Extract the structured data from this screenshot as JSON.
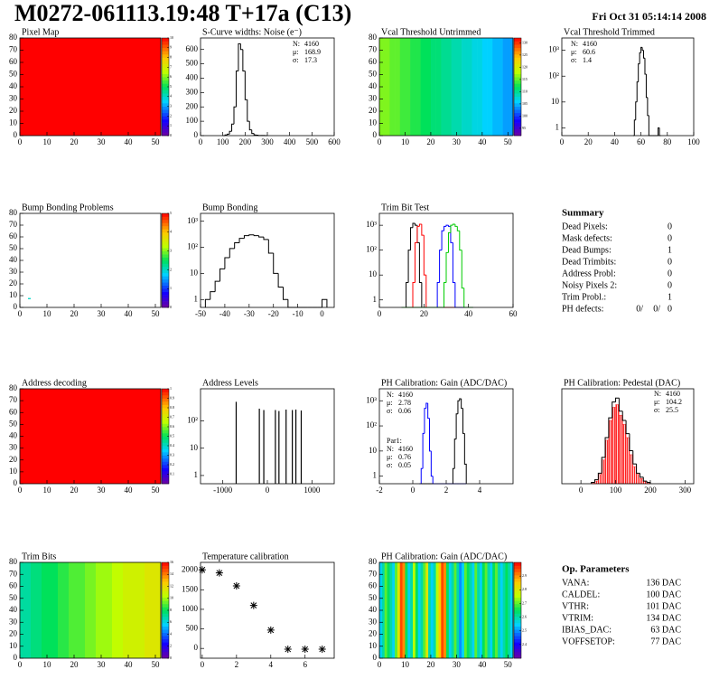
{
  "header": {
    "title": "M0272-061113.19:48 T+17a (C13)",
    "date": "Fri Oct 31 05:14:14 2008"
  },
  "chart_data": [
    {
      "type": "heatmap",
      "title": "Pixel Map",
      "xlim": [
        0,
        52
      ],
      "xticks": [
        0,
        10,
        20,
        30,
        40,
        50
      ],
      "ylim": [
        0,
        80
      ],
      "yticks": [
        0,
        10,
        20,
        30,
        40,
        50,
        60,
        70,
        80
      ],
      "zlim": [
        0,
        10
      ],
      "zticks": [
        0,
        1,
        2,
        3,
        4,
        5,
        6,
        7,
        8,
        9,
        10
      ],
      "value": 10
    },
    {
      "type": "hist",
      "title": "S-Curve widths: Noise (e⁻)",
      "xlim": [
        0,
        600
      ],
      "xticks": [
        0,
        100,
        200,
        300,
        400,
        500,
        600
      ],
      "ylim": [
        0,
        680
      ],
      "yticks": [
        0,
        100,
        200,
        300,
        400,
        500,
        600
      ],
      "bins": [
        100,
        110,
        120,
        130,
        140,
        150,
        160,
        170,
        180,
        190,
        200,
        210,
        220,
        230,
        240,
        250,
        260,
        270,
        280,
        290,
        300
      ],
      "series": [
        {
          "color": "#000000",
          "counts": [
            0,
            5,
            10,
            30,
            80,
            200,
            450,
            640,
            600,
            450,
            250,
            100,
            40,
            15,
            5,
            3,
            1,
            1,
            1,
            0
          ]
        }
      ],
      "stats": [
        [
          {
            "name": "N:",
            "value": 4160,
            "color": "#000000"
          },
          {
            "name": "μ:",
            "value": 168.9,
            "color": "#000000"
          },
          {
            "name": "σ:",
            "value": 17.3,
            "color": "#000000"
          }
        ]
      ]
    },
    {
      "type": "heatmap",
      "title": "Vcal Threshold Untrimmed",
      "xlim": [
        0,
        52
      ],
      "xticks": [
        0,
        10,
        20,
        30,
        40,
        50
      ],
      "ylim": [
        0,
        80
      ],
      "yticks": [
        0,
        10,
        20,
        30,
        40,
        50,
        60,
        70,
        80
      ],
      "zlim": [
        92,
        132
      ],
      "zticks": [
        95,
        100,
        105,
        110,
        115,
        120,
        125,
        130
      ],
      "columns": [
        116,
        116,
        115,
        115,
        114,
        114,
        113,
        113,
        112,
        112,
        111,
        111,
        110,
        110,
        109,
        109,
        108,
        108,
        107,
        107,
        106,
        106,
        105,
        105,
        104,
        104
      ]
    },
    {
      "type": "hist",
      "title": "Vcal Threshold Trimmed",
      "log_y": true,
      "xlim": [
        0,
        100
      ],
      "xticks": [
        0,
        20,
        40,
        60,
        80,
        100
      ],
      "ylim": [
        0.5,
        3000
      ],
      "yticks": [
        1,
        10,
        {
          "value": 100,
          "label": "10²"
        },
        {
          "value": 1000,
          "label": "10³"
        }
      ],
      "bins": [
        54,
        55,
        56,
        57,
        58,
        59,
        60,
        61,
        62,
        63,
        64,
        65,
        66,
        67,
        68,
        69,
        70,
        71,
        72,
        73,
        74,
        75
      ],
      "series": [
        {
          "color": "#000000",
          "counts": [
            0,
            2,
            10,
            60,
            300,
            800,
            1300,
            1000,
            500,
            120,
            15,
            3,
            0,
            0,
            0,
            0,
            0,
            0,
            0,
            1,
            0
          ]
        }
      ],
      "stats": [
        [
          {
            "name": "N:",
            "value": 4160,
            "color": "#000000"
          },
          {
            "name": "μ:",
            "value": 60.6,
            "color": "#000000"
          },
          {
            "name": "σ:",
            "value": 1.4,
            "color": "#000000"
          }
        ]
      ]
    },
    {
      "type": "heatmap",
      "title": "Bump Bonding Problems",
      "xlim": [
        0,
        52
      ],
      "xticks": [
        0,
        10,
        20,
        30,
        40,
        50
      ],
      "ylim": [
        0,
        80
      ],
      "yticks": [
        0,
        10,
        20,
        30,
        40,
        50,
        60,
        70,
        80
      ],
      "zlim": [
        0,
        5
      ],
      "zticks": [
        0,
        1,
        2,
        3,
        4,
        5
      ],
      "cells": [
        {
          "x": 3,
          "y": 7,
          "value": 2
        }
      ]
    },
    {
      "type": "hist",
      "title": "Bump Bonding",
      "log_y": true,
      "xlim": [
        -50,
        5
      ],
      "xticks": [
        -50,
        -40,
        -30,
        -20,
        -10,
        0
      ],
      "ylim": [
        0.5,
        2000
      ],
      "yticks": [
        1,
        10,
        {
          "value": 100,
          "label": "10²"
        },
        {
          "value": 1000,
          "label": "10³"
        }
      ],
      "bins": [
        -48,
        -46,
        -44,
        -42,
        -40,
        -38,
        -36,
        -34,
        -32,
        -30,
        -28,
        -26,
        -24,
        -22,
        -20,
        -18,
        -16,
        -14,
        -12,
        -10,
        -8,
        -6,
        -4,
        -2,
        0,
        2
      ],
      "series": [
        {
          "color": "#000000",
          "counts": [
            1,
            2,
            5,
            15,
            40,
            90,
            150,
            220,
            280,
            300,
            280,
            250,
            200,
            60,
            10,
            3,
            1,
            0,
            0,
            0,
            0,
            0,
            0,
            0,
            1
          ]
        }
      ]
    },
    {
      "type": "hist",
      "title": "Trim Bit Test",
      "log_y": true,
      "xlim": [
        0,
        60
      ],
      "xticks": [
        0,
        20,
        40,
        60
      ],
      "ylim": [
        0.5,
        3000
      ],
      "yticks": [
        1,
        10,
        {
          "value": 100,
          "label": "10²"
        },
        {
          "value": 1000,
          "label": "10³"
        }
      ],
      "bins": [
        10,
        11,
        12,
        13,
        14,
        15,
        16,
        17,
        18,
        19,
        20,
        21,
        22,
        23,
        24,
        25,
        26,
        27,
        28,
        29,
        30,
        31,
        32,
        33,
        34,
        35,
        36,
        37,
        38,
        39,
        40,
        41,
        42
      ],
      "series": [
        {
          "color": "#000000",
          "counts": [
            0,
            0,
            5,
            100,
            800,
            1200,
            1000,
            200,
            5,
            0,
            0,
            0,
            0,
            0,
            0,
            0,
            0,
            0,
            0,
            0,
            0,
            0,
            0,
            0,
            0,
            0,
            0,
            0,
            0,
            0,
            0,
            0
          ]
        },
        {
          "color": "#ff0000",
          "counts": [
            0,
            0,
            0,
            0,
            0,
            5,
            200,
            900,
            1100,
            400,
            10,
            0,
            0,
            0,
            0,
            0,
            0,
            0,
            0,
            0,
            0,
            0,
            0,
            0,
            0,
            0,
            0,
            0,
            0,
            0,
            0,
            0
          ]
        },
        {
          "color": "#0000ff",
          "counts": [
            0,
            0,
            0,
            0,
            0,
            0,
            0,
            0,
            0,
            0,
            0,
            0,
            0,
            0,
            0,
            0,
            5,
            100,
            600,
            900,
            1000,
            900,
            200,
            5,
            0,
            0,
            0,
            0,
            0,
            0,
            0,
            0
          ]
        },
        {
          "color": "#00cc00",
          "counts": [
            0,
            0,
            0,
            0,
            0,
            0,
            0,
            0,
            0,
            0,
            0,
            0,
            0,
            0,
            0,
            0,
            0,
            0,
            0,
            5,
            80,
            500,
            1000,
            1100,
            900,
            600,
            100,
            3,
            0,
            0,
            0,
            0
          ]
        }
      ]
    },
    {
      "type": "heatmap",
      "title": "Address decoding",
      "xlim": [
        0,
        52
      ],
      "xticks": [
        0,
        10,
        20,
        30,
        40,
        50
      ],
      "ylim": [
        0,
        80
      ],
      "yticks": [
        0,
        10,
        20,
        30,
        40,
        50,
        60,
        70,
        80
      ],
      "zlim": [
        0,
        1
      ],
      "zticks": [
        0.1,
        0.2,
        0.3,
        0.4,
        0.5,
        0.6,
        0.7,
        0.8,
        0.9,
        1
      ],
      "value": 1
    },
    {
      "type": "spikes",
      "title": "Address Levels",
      "log_y": true,
      "xlim": [
        -1500,
        1500
      ],
      "xticks": [
        -1000,
        0,
        1000
      ],
      "ylim": [
        0.5,
        1500
      ],
      "yticks": [
        1,
        10,
        {
          "value": 100,
          "label": "10²"
        }
      ],
      "x": [
        -700,
        -180,
        -80,
        180,
        260,
        420,
        560,
        640,
        760
      ],
      "values": [
        500,
        280,
        250,
        250,
        230,
        260,
        250,
        260,
        240
      ],
      "color": "#000000"
    },
    {
      "type": "hist",
      "title": "PH Calibration: Gain (ADC/DAC)",
      "log_y": true,
      "xlim": [
        -2,
        6
      ],
      "xticks": [
        -2,
        0,
        2,
        4
      ],
      "ylim": [
        0.5,
        3000
      ],
      "yticks": [
        1,
        10,
        {
          "value": 100,
          "label": "10²"
        },
        {
          "value": 1000,
          "label": "10³"
        }
      ],
      "bins": [
        0.4,
        0.5,
        0.6,
        0.7,
        0.8,
        0.9,
        1.0,
        1.1,
        1.2,
        1.3,
        1.4,
        1.5,
        1.6,
        1.7,
        1.8,
        1.9,
        2.0,
        2.1,
        2.2,
        2.3,
        2.4,
        2.5,
        2.6,
        2.7,
        2.8,
        2.9,
        3.0,
        3.1,
        3.2
      ],
      "series": [
        {
          "color": "#000000",
          "counts": [
            0,
            0,
            0,
            0,
            0,
            0,
            0,
            0,
            0,
            0,
            0,
            0,
            0,
            0,
            0,
            0,
            0,
            0,
            0,
            0,
            2,
            30,
            300,
            1000,
            1200,
            500,
            50,
            3
          ]
        },
        {
          "color": "#0000ff",
          "counts": [
            0,
            2,
            50,
            500,
            800,
            200,
            10,
            1,
            0,
            0,
            0,
            0,
            0,
            0,
            0,
            0,
            0,
            0,
            0,
            0,
            0,
            0,
            0,
            0,
            0,
            0,
            0,
            0
          ]
        }
      ],
      "stats": [
        [
          {
            "name": "N:",
            "value": 4160,
            "color": "#000000"
          },
          {
            "name": "μ:",
            "value": 2.78,
            "color": "#000000"
          },
          {
            "name": "σ:",
            "value": 0.06,
            "color": "#000000"
          }
        ],
        [
          {
            "name": "Par1:",
            "color": "#0000ff"
          },
          {
            "name": "N:",
            "value": 4160,
            "color": "#0000ff"
          },
          {
            "name": "μ:",
            "value": 0.76,
            "color": "#0000ff"
          },
          {
            "name": "σ:",
            "value": 0.05,
            "color": "#0000ff"
          }
        ]
      ]
    },
    {
      "type": "hist",
      "title": "PH Calibration: Pedestal (DAC)",
      "xlim": [
        -55,
        325
      ],
      "xticks": [
        0,
        100,
        200,
        300
      ],
      "ylim": [
        0,
        72
      ],
      "yticks": [],
      "bins": [
        30,
        40,
        50,
        60,
        70,
        80,
        90,
        100,
        110,
        120,
        130,
        140,
        150,
        160,
        170,
        180,
        190,
        200
      ],
      "series": [
        {
          "color": "#ff0000",
          "fill": true,
          "counts": [
            1,
            2,
            7,
            18,
            33,
            48,
            58,
            60,
            52,
            45,
            35,
            22,
            13,
            7,
            4,
            2,
            1
          ]
        },
        {
          "color": "#000000",
          "counts": [
            1,
            3,
            8,
            20,
            35,
            50,
            62,
            65,
            55,
            48,
            38,
            25,
            15,
            8,
            5,
            2,
            1
          ]
        }
      ],
      "stats": [
        [
          {
            "name": "N:",
            "value": 4160,
            "color": "#000000"
          },
          {
            "name": "μ:",
            "value": 104.2,
            "color": "#ff0000"
          },
          {
            "name": "σ:",
            "value": 25.5,
            "color": "#ff0000"
          }
        ]
      ]
    },
    {
      "type": "heatmap",
      "title": "Trim Bits",
      "xlim": [
        0,
        52
      ],
      "xticks": [
        0,
        10,
        20,
        30,
        40,
        50
      ],
      "ylim": [
        0,
        80
      ],
      "yticks": [
        0,
        10,
        20,
        30,
        40,
        50,
        60,
        70,
        80
      ],
      "zlim": [
        0,
        16
      ],
      "zticks": [
        0,
        2,
        4,
        6,
        8,
        10,
        12,
        14,
        16
      ],
      "columns": [
        7,
        7,
        7.5,
        7.5,
        8,
        8,
        8,
        8.5,
        8.5,
        9,
        9,
        9,
        9.5,
        9.5,
        10,
        10,
        10,
        10.5,
        10.5,
        11,
        11,
        11,
        11,
        11.5,
        11.5,
        11.5
      ]
    },
    {
      "type": "scatter",
      "title": "Temperature calibration",
      "xlim": [
        -0.1,
        7.7
      ],
      "xticks": [
        0,
        2,
        4,
        6
      ],
      "ylim": [
        -250,
        2200
      ],
      "yticks": [
        0,
        500,
        1000,
        1500,
        2000
      ],
      "x": [
        0,
        1,
        2,
        3,
        4,
        5,
        6,
        7
      ],
      "values": [
        2010,
        1930,
        1600,
        1100,
        470,
        -20,
        -20,
        -20
      ],
      "color": "#000000"
    },
    {
      "type": "heatmap",
      "title": "PH Calibration: Gain (ADC/DAC)",
      "xlim": [
        0,
        52
      ],
      "xticks": [
        0,
        10,
        20,
        30,
        40,
        50
      ],
      "ylim": [
        0,
        80
      ],
      "yticks": [
        0,
        10,
        20,
        30,
        40,
        50,
        60,
        70,
        80
      ],
      "zlim": [
        2.3,
        3.0
      ],
      "zticks": [
        2.4,
        2.5,
        2.6,
        2.7,
        2.8,
        2.9
      ],
      "columns": [
        2.55,
        2.6,
        2.7,
        2.65,
        2.6,
        2.55,
        2.7,
        2.8,
        2.95,
        2.9,
        2.65,
        2.55,
        2.6,
        2.75,
        2.65,
        2.55,
        2.6,
        2.7,
        2.8,
        2.6,
        2.55,
        2.6,
        2.75,
        2.85,
        2.95,
        2.9,
        2.65,
        2.55,
        2.6,
        2.7,
        2.6,
        2.5,
        2.55,
        2.7,
        2.65,
        2.6,
        2.55,
        2.7,
        2.6,
        2.55,
        2.65,
        2.7,
        2.6,
        2.55,
        2.65,
        2.7,
        2.6,
        2.55,
        2.6,
        2.65,
        2.6,
        2.55
      ]
    }
  ],
  "summary": {
    "title": "Summary",
    "rows": [
      {
        "label": "Dead Pixels:",
        "value": 0
      },
      {
        "label": "Mask defects:",
        "value": 0
      },
      {
        "label": "Dead Bumps:",
        "value": 1
      },
      {
        "label": "Dead Trimbits:",
        "value": 0
      },
      {
        "label": "Address Probl:",
        "value": 0
      },
      {
        "label": "Noisy Pixels 2:",
        "value": 0
      },
      {
        "label": "Trim Probl.:",
        "value": 1
      }
    ],
    "ph_defects": {
      "label": "PH defects:",
      "parts": [
        {
          "text": "0/",
          "color": "#000000"
        },
        {
          "text": "0/",
          "color": "#ff0000"
        },
        {
          "text": "0",
          "color": "#0000ff"
        }
      ]
    }
  },
  "parameters": {
    "title": "Op. Parameters",
    "rows": [
      {
        "name": "VANA:",
        "value": "136 DAC"
      },
      {
        "name": "CALDEL:",
        "value": "100 DAC"
      },
      {
        "name": "VTHR:",
        "value": "101 DAC"
      },
      {
        "name": "VTRIM:",
        "value": "134 DAC"
      },
      {
        "name": "IBIAS_DAC:",
        "value": "63 DAC"
      },
      {
        "name": "VOFFSETOP:",
        "value": "77 DAC"
      }
    ]
  }
}
